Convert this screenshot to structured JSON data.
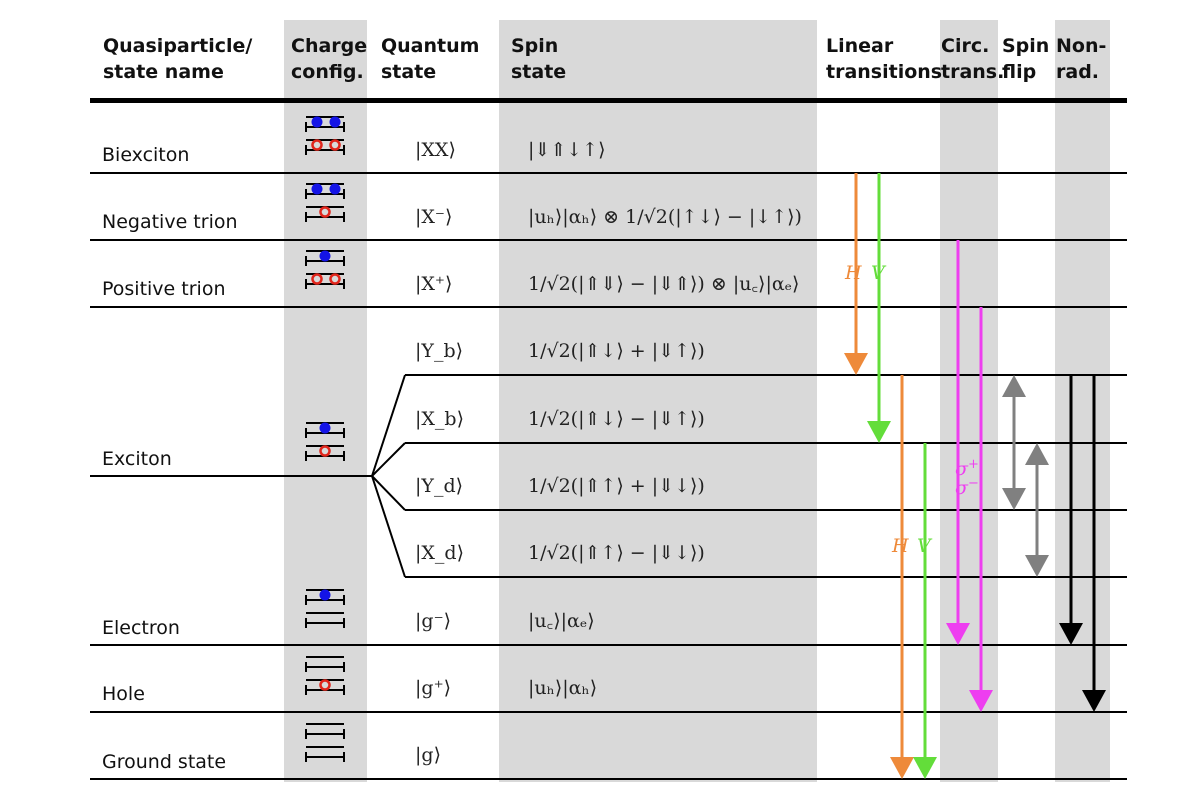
{
  "headers": {
    "name": [
      "Quasiparticle/",
      "state name"
    ],
    "charge": [
      "Charge",
      "config."
    ],
    "quantum": [
      "Quantum",
      "state"
    ],
    "spin": [
      "Spin",
      "state"
    ],
    "linear": [
      "Linear",
      "transitions"
    ],
    "circ": [
      "Circ.",
      "trans."
    ],
    "spinflip": [
      "Spin",
      "flip"
    ],
    "nonrad": [
      "Non-",
      "rad."
    ]
  },
  "rows": [
    {
      "name": "Biexciton",
      "charge": "XX",
      "quantum": "|XX⟩",
      "spin": "|⇓⇑↓↑⟩"
    },
    {
      "name": "Negative trion",
      "charge": "Xm",
      "quantum": "|X⁻⟩",
      "spin": "|uₕ⟩|αₕ⟩ ⊗ 1/√2(|↑↓⟩ − |↓↑⟩)"
    },
    {
      "name": "Positive trion",
      "charge": "Xp",
      "quantum": "|X⁺⟩",
      "spin": "1/√2(|⇑⇓⟩ − |⇓⇑⟩) ⊗ |u꜀⟩|αₑ⟩"
    },
    {
      "name": "",
      "charge": "",
      "quantum": "|Y_b⟩",
      "spin": "1/√2(|⇑↓⟩ + |⇓↑⟩)"
    },
    {
      "name": "",
      "charge": "",
      "quantum": "|X_b⟩",
      "spin": "1/√2(|⇑↓⟩ − |⇓↑⟩)"
    },
    {
      "name": "Exciton",
      "charge": "X",
      "quantum": "|Y_d⟩",
      "spin": "1/√2(|⇑↑⟩ + |⇓↓⟩)"
    },
    {
      "name": "",
      "charge": "",
      "quantum": "|X_d⟩",
      "spin": "1/√2(|⇑↑⟩ − |⇓↓⟩)"
    },
    {
      "name": "Electron",
      "charge": "gm",
      "quantum": "|g⁻⟩",
      "spin": "|u꜀⟩|αₑ⟩"
    },
    {
      "name": "Hole",
      "charge": "gp",
      "quantum": "|g⁺⟩",
      "spin": "|uₕ⟩|αₕ⟩"
    },
    {
      "name": "Ground state",
      "charge": "g",
      "quantum": "|g⟩",
      "spin": ""
    }
  ],
  "transition_labels": {
    "H": "H",
    "V": "V",
    "sigma_plus": "σ+",
    "sigma_minus": "σ−"
  },
  "colors": {
    "background_column": "#d9d9d9",
    "electron": "#1414e6",
    "hole": "#e0251b",
    "H": "#ee8a3a",
    "V": "#63dd3a",
    "circular": "#ee3ef0",
    "spin_flip": "#808080",
    "non_radiative": "#000000"
  }
}
